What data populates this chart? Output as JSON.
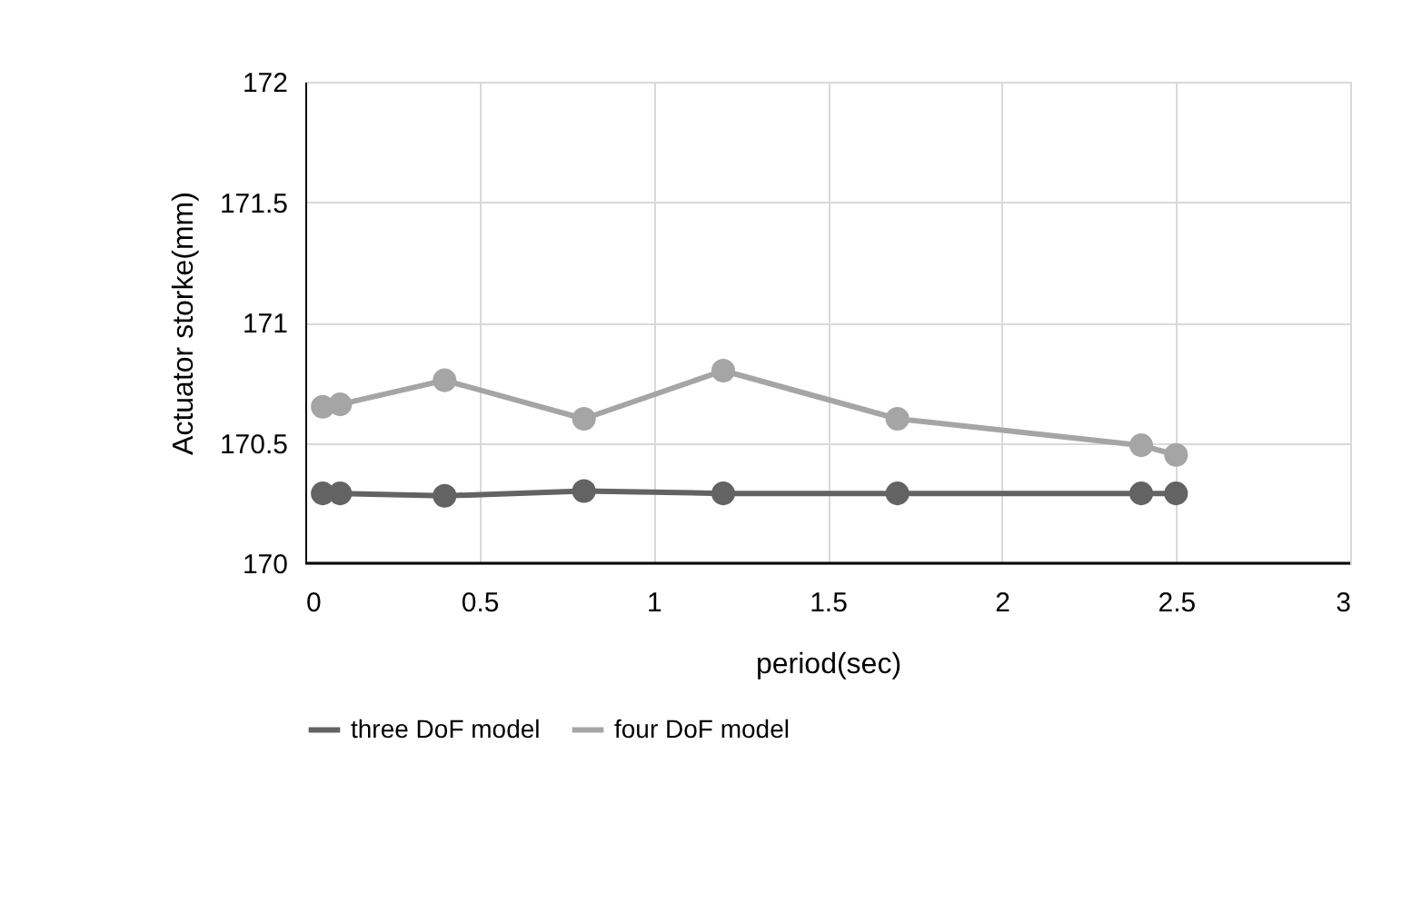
{
  "chart_data": {
    "type": "line",
    "xlabel": "period(sec)",
    "ylabel": "Actuator storke(mm)",
    "x": [
      0.05,
      0.1,
      0.4,
      0.8,
      1.2,
      1.7,
      2.4,
      2.5
    ],
    "series": [
      {
        "name": "three DoF model",
        "color": "#636363",
        "values": [
          170.29,
          170.29,
          170.28,
          170.3,
          170.29,
          170.29,
          170.29,
          170.29
        ]
      },
      {
        "name": "four DoF model",
        "color": "#a5a5a5",
        "values": [
          170.65,
          170.66,
          170.76,
          170.6,
          170.8,
          170.6,
          170.49,
          170.45
        ]
      }
    ],
    "xlim": [
      0,
      3
    ],
    "xticks": [
      0,
      0.5,
      1,
      1.5,
      2,
      2.5,
      3
    ],
    "ylim": [
      170,
      172
    ],
    "yticks": [
      170,
      170.5,
      171,
      171.5,
      172
    ],
    "grid": true,
    "legend": "bottom",
    "marker": "circle",
    "line_style": "solid"
  }
}
